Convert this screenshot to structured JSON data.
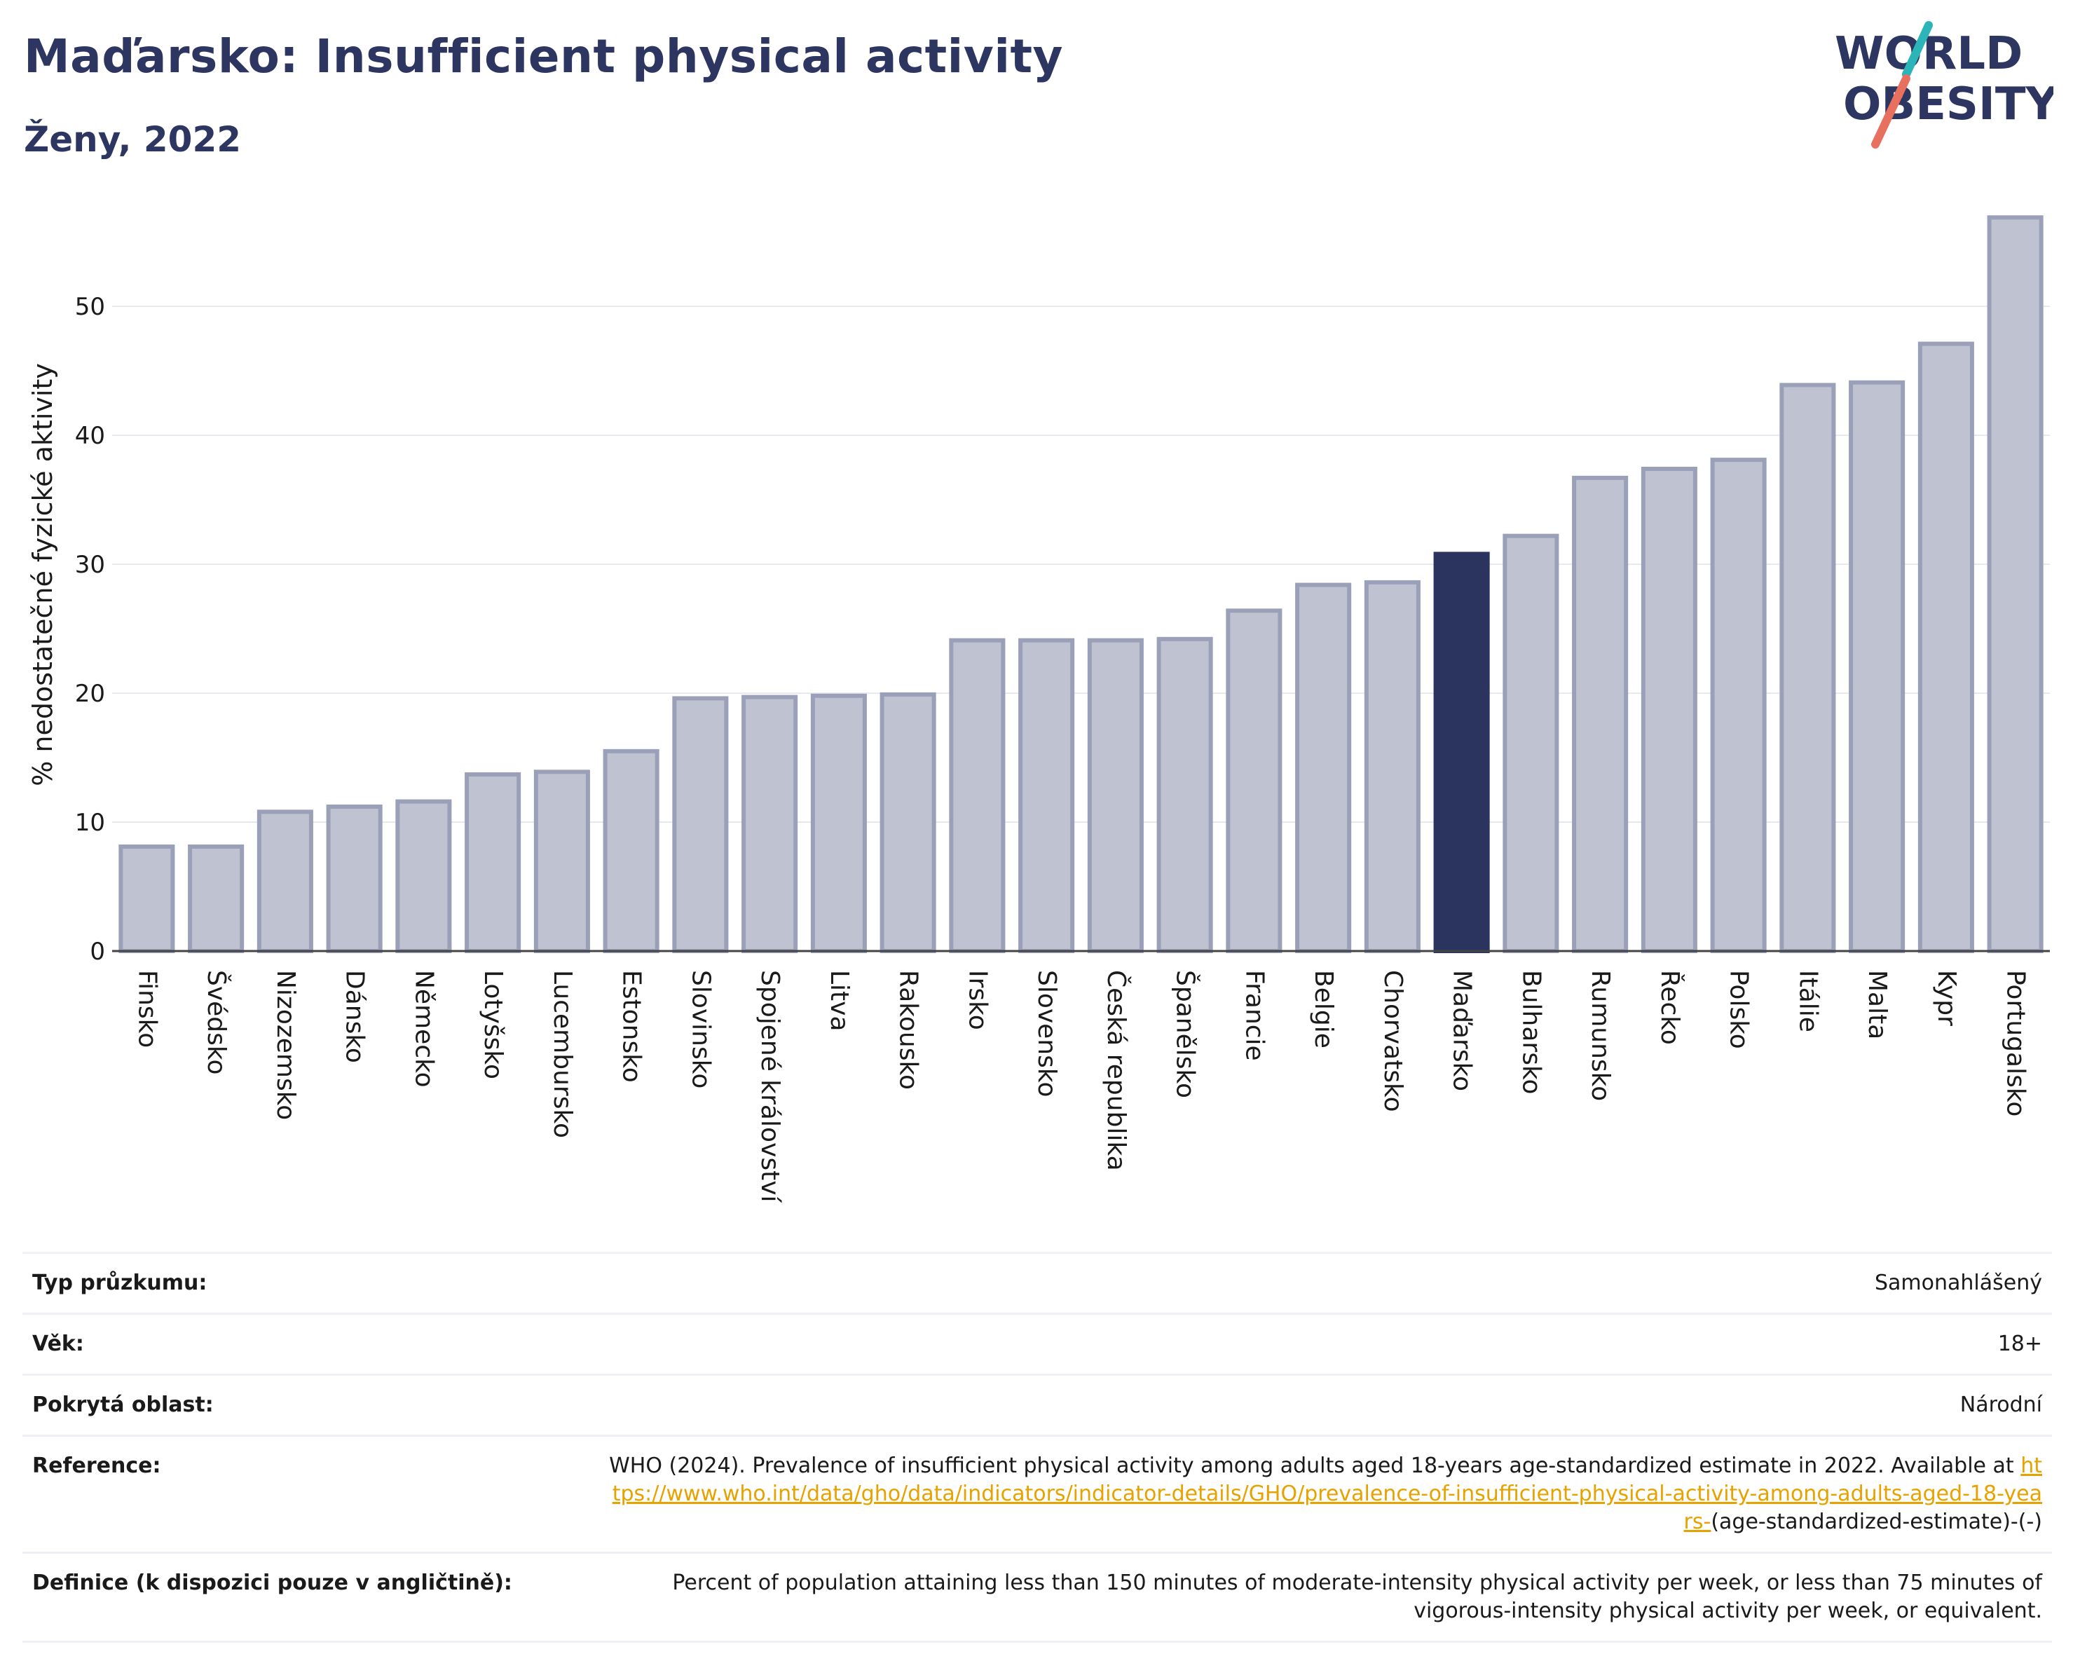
{
  "header": {
    "title": "Maďarsko: Insufficient physical activity",
    "subtitle": "Ženy, 2022",
    "logo_line1": "WORLD",
    "logo_line2": "OBESITY"
  },
  "colors": {
    "bar": "#bfc3d1",
    "bar_border": "#9aa0b8",
    "highlight": "#2b345e",
    "title": "#2d3561",
    "link": "#e8a200",
    "logo_teal": "#2bb5b8",
    "logo_red": "#e8705f"
  },
  "chart_data": {
    "type": "bar",
    "title": "Maďarsko: Insufficient physical activity",
    "subtitle": "Ženy, 2022",
    "ylabel": "% nedostatečné fyzické aktivity",
    "xlabel": "",
    "ylim": [
      0,
      58
    ],
    "yticks": [
      0,
      10,
      20,
      30,
      40,
      50
    ],
    "grid": true,
    "highlight": "Maďarsko",
    "categories": [
      "Finsko",
      "Švédsko",
      "Nizozemsko",
      "Dánsko",
      "Německo",
      "Lotyšsko",
      "Lucembursko",
      "Estonsko",
      "Slovinsko",
      "Spojené království",
      "Litva",
      "Rakousko",
      "Irsko",
      "Slovensko",
      "Česká republika",
      "Španělsko",
      "Francie",
      "Belgie",
      "Chorvatsko",
      "Maďarsko",
      "Bulharsko",
      "Rumunsko",
      "Řecko",
      "Polsko",
      "Itálie",
      "Malta",
      "Kypr",
      "Portugalsko"
    ],
    "values": [
      8.1,
      8.1,
      10.8,
      11.2,
      11.6,
      13.7,
      13.9,
      15.5,
      19.6,
      19.7,
      19.8,
      19.9,
      24.1,
      24.1,
      24.1,
      24.2,
      26.4,
      28.4,
      28.6,
      30.8,
      32.2,
      36.7,
      37.4,
      38.1,
      43.9,
      44.1,
      47.1,
      56.9
    ]
  },
  "meta": {
    "survey_label": "Typ průzkumu:",
    "survey_value": "Samonahlášený",
    "age_label": "Věk:",
    "age_value": "18+",
    "area_label": "Pokrytá oblast:",
    "area_value": "Národní",
    "reference_label": "Reference:",
    "reference_text": "WHO (2024). Prevalence of insufficient physical activity among adults aged 18-years age-standardized estimate in 2022. Available at",
    "reference_link": "https://www.who.int/data/gho/data/indicators/indicator-details/GHO/prevalence-of-insufficient-physical-activity-among-adults-aged-18-years-",
    "reference_tail": "(age-standardized-estimate)-(-)",
    "definition_label": "Definice (k dispozici pouze v angličtině):",
    "definition_text": "Percent of population attaining less than 150 minutes of moderate-intensity physical activity per week, or less than 75 minutes of vigorous-intensity physical activity per week, or equivalent."
  }
}
